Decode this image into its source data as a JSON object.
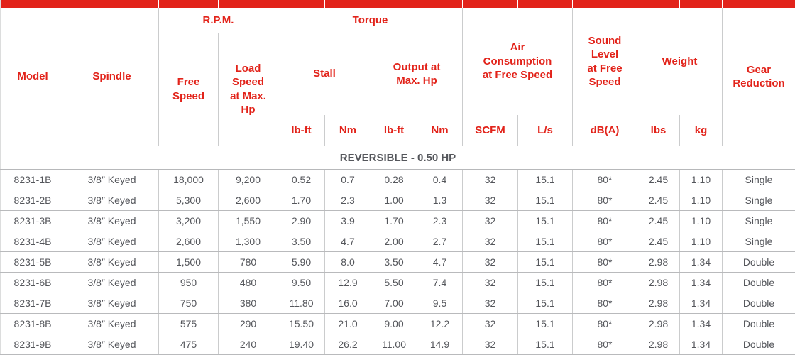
{
  "table": {
    "groups": {
      "rpm": "R.P.M.",
      "torque": "Torque"
    },
    "headers": {
      "model": "Model",
      "spindle": "Spindle",
      "free_speed": "Free Speed",
      "load_speed": "Load Speed at Max. Hp",
      "stall": "Stall",
      "output": "Output at Max. Hp",
      "air_consumption": "Air Consumption at Free Speed",
      "sound_level": "Sound Level at Free Speed",
      "weight": "Weight",
      "gear_reduction": "Gear Reduction",
      "units": {
        "stall_lbft": "lb-ft",
        "stall_nm": "Nm",
        "output_lbft": "lb-ft",
        "output_nm": "Nm",
        "scfm": "SCFM",
        "ls": "L/s",
        "dba": "dB(A)",
        "lbs": "lbs",
        "kg": "kg"
      }
    },
    "section_title": "REVERSIBLE - 0.50 HP",
    "col_keys": [
      "model",
      "spindle",
      "free_speed",
      "load_speed",
      "stall_lbft",
      "stall_nm",
      "output_lbft",
      "output_nm",
      "scfm",
      "ls",
      "dba",
      "lbs",
      "kg",
      "gear_reduction"
    ],
    "rows": [
      [
        "8231-1B",
        "3/8″ Keyed",
        "18,000",
        "9,200",
        "0.52",
        "0.7",
        "0.28",
        "0.4",
        "32",
        "15.1",
        "80*",
        "2.45",
        "1.10",
        "Single"
      ],
      [
        "8231-2B",
        "3/8″ Keyed",
        "5,300",
        "2,600",
        "1.70",
        "2.3",
        "1.00",
        "1.3",
        "32",
        "15.1",
        "80*",
        "2.45",
        "1.10",
        "Single"
      ],
      [
        "8231-3B",
        "3/8″ Keyed",
        "3,200",
        "1,550",
        "2.90",
        "3.9",
        "1.70",
        "2.3",
        "32",
        "15.1",
        "80*",
        "2.45",
        "1.10",
        "Single"
      ],
      [
        "8231-4B",
        "3/8″ Keyed",
        "2,600",
        "1,300",
        "3.50",
        "4.7",
        "2.00",
        "2.7",
        "32",
        "15.1",
        "80*",
        "2.45",
        "1.10",
        "Single"
      ],
      [
        "8231-5B",
        "3/8″ Keyed",
        "1,500",
        "780",
        "5.90",
        "8.0",
        "3.50",
        "4.7",
        "32",
        "15.1",
        "80*",
        "2.98",
        "1.34",
        "Double"
      ],
      [
        "8231-6B",
        "3/8″ Keyed",
        "950",
        "480",
        "9.50",
        "12.9",
        "5.50",
        "7.4",
        "32",
        "15.1",
        "80*",
        "2.98",
        "1.34",
        "Double"
      ],
      [
        "8231-7B",
        "3/8″ Keyed",
        "750",
        "380",
        "11.80",
        "16.0",
        "7.00",
        "9.5",
        "32",
        "15.1",
        "80*",
        "2.98",
        "1.34",
        "Double"
      ],
      [
        "8231-8B",
        "3/8″ Keyed",
        "575",
        "290",
        "15.50",
        "21.0",
        "9.00",
        "12.2",
        "32",
        "15.1",
        "80*",
        "2.98",
        "1.34",
        "Double"
      ],
      [
        "8231-9B",
        "3/8″ Keyed",
        "475",
        "240",
        "19.40",
        "26.2",
        "11.00",
        "14.9",
        "32",
        "15.1",
        "80*",
        "2.98",
        "1.34",
        "Double"
      ]
    ],
    "colors": {
      "accent_red": "#e2231a",
      "text_gray": "#54565b",
      "border_light": "#cbcccd",
      "border_row": "#b9babc"
    }
  }
}
